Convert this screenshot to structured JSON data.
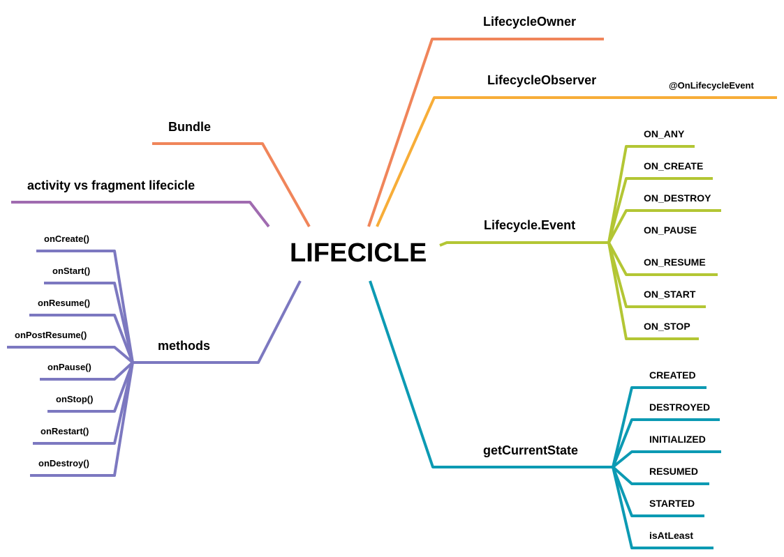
{
  "root": {
    "label": "LIFECICLE"
  },
  "colors": {
    "owner": "#f0855a",
    "observer": "#f7ad38",
    "event": "#b3c634",
    "state": "#0c9ab3",
    "bundle": "#f0855a",
    "activity": "#a06bb0",
    "methods": "#7c78c0"
  },
  "branches": {
    "owner": {
      "label": "LifecycleOwner"
    },
    "observer": {
      "label": "LifecycleObserver",
      "children": [
        "@OnLifecycleEvent"
      ]
    },
    "event": {
      "label": "Lifecycle.Event",
      "children": [
        "ON_ANY",
        "ON_CREATE",
        "ON_DESTROY",
        "ON_PAUSE",
        "ON_RESUME",
        "ON_START",
        "ON_STOP"
      ]
    },
    "state": {
      "label": "getCurrentState",
      "children": [
        "CREATED",
        "DESTROYED",
        "INITIALIZED",
        "RESUMED",
        "STARTED",
        "isAtLeast"
      ]
    },
    "bundle": {
      "label": "Bundle"
    },
    "activity": {
      "label": "activity vs fragment lifecicle"
    },
    "methods": {
      "label": "methods",
      "children": [
        "onCreate()",
        "onStart()",
        "onResume()",
        "onPostResume()",
        "onPause()",
        "onStop()",
        "onRestart()",
        "onDestroy()"
      ]
    }
  }
}
